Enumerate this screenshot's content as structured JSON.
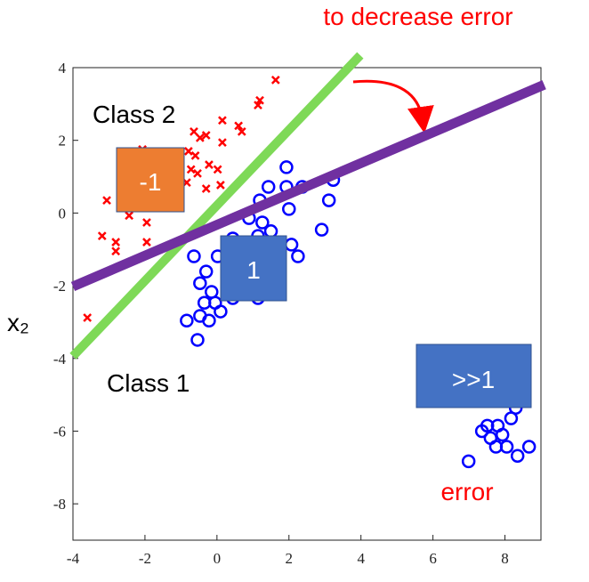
{
  "chart_data": {
    "type": "scatter",
    "ylabel": "x₂",
    "xlim": [
      -4,
      9
    ],
    "ylim": [
      -9,
      4
    ],
    "xticks": [
      -4,
      -2,
      0,
      2,
      4,
      6,
      8
    ],
    "yticks": [
      -8,
      -6,
      -4,
      -2,
      0,
      2,
      4
    ],
    "series": [
      {
        "name": "Class 2",
        "color": "#ff0000",
        "marker": "x",
        "x": [
          1.63,
          1.19,
          1.14,
          0.15,
          0.6,
          0.69,
          -0.64,
          -0.47,
          -0.3,
          0.15,
          -0.79,
          -0.6,
          -0.22,
          -0.72,
          0.02,
          -0.54,
          -0.84,
          0.1,
          -0.3,
          -3.06,
          -2.57,
          -2.44,
          -1.95,
          -3.19,
          -2.81,
          -2.81,
          -1.95,
          -3.6,
          -2.07,
          -1.33,
          -1.14
        ],
        "values": [
          3.66,
          3.1,
          2.97,
          2.55,
          2.4,
          2.24,
          2.24,
          2.07,
          2.14,
          1.94,
          1.7,
          1.58,
          1.33,
          1.2,
          1.2,
          1.09,
          0.84,
          0.77,
          0.67,
          0.35,
          0.35,
          -0.07,
          -0.26,
          -0.63,
          -0.8,
          -1.05,
          -0.8,
          -2.88,
          1.75,
          0.72,
          1.06
        ]
      },
      {
        "name": "Class 1",
        "color": "#0000ff",
        "marker": "o",
        "x": [
          1.93,
          1.43,
          1.93,
          2.37,
          3.23,
          3.11,
          2.0,
          1.19,
          0.89,
          1.26,
          1.5,
          1.14,
          2.91,
          2.07,
          2.25,
          0.44,
          -0.64,
          0.02,
          -0.3,
          -0.47,
          -0.15,
          -0.35,
          -0.05,
          -0.47,
          -0.84,
          -0.22,
          -0.54,
          0.1,
          1.14,
          0.44,
          7.51,
          7.8,
          8.17,
          8.3,
          7.93,
          7.6,
          8.05,
          7.75,
          8.67,
          8.35,
          6.99,
          7.36
        ],
        "values": [
          1.26,
          0.72,
          0.72,
          0.72,
          0.91,
          0.35,
          0.11,
          0.35,
          -0.14,
          -0.26,
          -0.5,
          -0.63,
          -0.46,
          -0.87,
          -1.19,
          -0.7,
          -1.19,
          -1.19,
          -1.61,
          -1.93,
          -2.17,
          -2.47,
          -2.47,
          -2.83,
          -2.96,
          -2.96,
          -3.49,
          -2.71,
          -2.34,
          -2.34,
          -5.85,
          -5.85,
          -5.65,
          -5.36,
          -6.1,
          -6.19,
          -6.43,
          -6.43,
          -6.43,
          -6.68,
          -6.83,
          -6.0
        ]
      }
    ],
    "lines": [
      {
        "color": "#7ed957",
        "x": [
          -4,
          3.98
        ],
        "values": [
          -3.94,
          4.34
        ]
      },
      {
        "color": "#7030a0",
        "x": [
          -4,
          9.09
        ],
        "values": [
          -2.02,
          3.53
        ]
      }
    ],
    "annotations": [
      {
        "text": "to decrease error",
        "color": "#ff0000"
      },
      {
        "text": "-1",
        "color": "#ed7d31"
      },
      {
        "text": "1",
        "color": "#4472c4"
      },
      {
        "text": ">>1",
        "color": "#4472c4"
      },
      {
        "text": "error",
        "color": "#ff0000"
      }
    ]
  }
}
